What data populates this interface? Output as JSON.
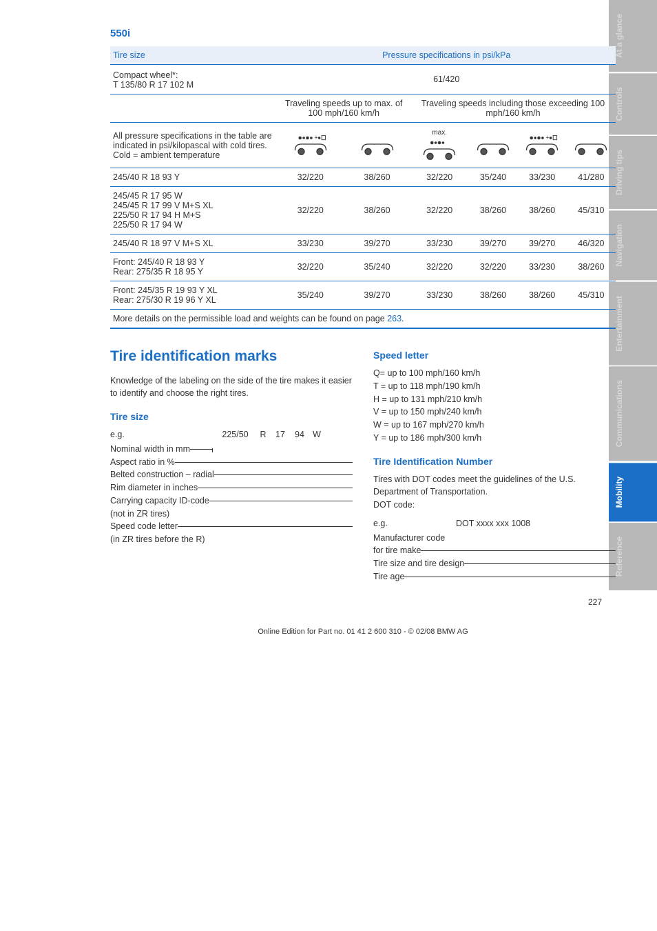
{
  "sidebar": {
    "tabs": [
      {
        "label": "At a glance",
        "active": false
      },
      {
        "label": "Controls",
        "active": false
      },
      {
        "label": "Driving tips",
        "active": false
      },
      {
        "label": "Navigation",
        "active": false
      },
      {
        "label": "Entertainment",
        "active": false
      },
      {
        "label": "Communications",
        "active": false
      },
      {
        "label": "Mobility",
        "active": true
      },
      {
        "label": "Reference",
        "active": false
      }
    ]
  },
  "model": "550i",
  "table": {
    "hdr_tire_size": "Tire size",
    "hdr_pressure": "Pressure specifications in psi/kPa",
    "compact_wheel_label": "Compact wheel*:",
    "compact_wheel_size": "T 135/80 R 17 102 M",
    "compact_wheel_value": "61/420",
    "speed_upto_label": "Traveling speeds up to max. of 100 mph/160 km/h",
    "speed_over_label": "Traveling speeds including those exceeding 100 mph/160 km/h",
    "allpress_1": "All pressure specifications in the table are indicated in psi/kilopascal with cold tires.",
    "allpress_2": "Cold = ambient temperature",
    "max_label": "max.",
    "rows": [
      {
        "size": "245/40 R 18 93 Y",
        "c1": "32/220",
        "c2": "38/260",
        "c3": "32/220",
        "c4": "35/240",
        "c5": "33/230",
        "c6": "41/280"
      },
      {
        "size": "245/45 R 17 95 W\n245/45 R 17 99 V M+S XL\n225/50 R 17 94 H M+S\n225/50 R 17 94 W",
        "c1": "32/220",
        "c2": "38/260",
        "c3": "32/220",
        "c4": "38/260",
        "c5": "38/260",
        "c6": "45/310"
      },
      {
        "size": "245/40 R 18 97 V M+S XL",
        "c1": "33/230",
        "c2": "39/270",
        "c3": "33/230",
        "c4": "39/270",
        "c5": "39/270",
        "c6": "46/320"
      },
      {
        "size": "Front: 245/40 R 18 93 Y\nRear: 275/35 R 18 95 Y",
        "c1": "32/220",
        "c2": "35/240",
        "c3": "32/220",
        "c4": "32/220",
        "c5": "33/230",
        "c6": "38/260"
      },
      {
        "size": "Front: 245/35 R 19 93 Y XL\nRear: 275/30 R 19 96 Y XL",
        "c1": "35/240",
        "c2": "39/270",
        "c3": "33/230",
        "c4": "38/260",
        "c5": "38/260",
        "c6": "45/310"
      }
    ],
    "note_pre": "More details on the permissible load and weights can be found on page ",
    "note_page": "263",
    "note_post": "."
  },
  "tire_id": {
    "title": "Tire identification marks",
    "intro": "Knowledge of the labeling on the side of the tire makes it easier to identify and choose the right tires.",
    "size_title": "Tire size",
    "eg": "e.g.",
    "ex_width": "225/50",
    "ex_r": "R",
    "ex_rim": "17",
    "ex_load": "94",
    "ex_speed": "W",
    "labels": [
      "Nominal width in mm",
      "Aspect ratio in %",
      "Belted construction – radial",
      "Rim diameter in inches",
      "Carrying capacity ID-code",
      "(not in ZR tires)",
      "Speed code letter",
      "(in ZR tires before the R)"
    ]
  },
  "speed": {
    "title": "Speed letter",
    "rows": [
      "Q= up to 100 mph/160 km/h",
      "T = up to 118 mph/190 km/h",
      "H = up to 131 mph/210 km/h",
      "V = up to 150 mph/240 km/h",
      "W = up to 167 mph/270 km/h",
      "Y = up to 186 mph/300 km/h"
    ]
  },
  "tin": {
    "title": "Tire Identification Number",
    "intro": "Tires with DOT codes meet the guidelines of the U.S. Department of Transportation.",
    "dot_label": "DOT code:",
    "eg": "e.g.",
    "dot_value": "DOT xxxx xxx 1008",
    "labels": [
      "Manufacturer code",
      "for tire make",
      "Tire size and tire design",
      "Tire age"
    ]
  },
  "footer": {
    "pagenum": "227",
    "copyright": "Online Edition for Part no. 01 41 2 600 310 - © 02/08 BMW AG"
  },
  "colors": {
    "brand_blue": "#1b6fc6",
    "inactive_gray": "#b8b8b8"
  }
}
